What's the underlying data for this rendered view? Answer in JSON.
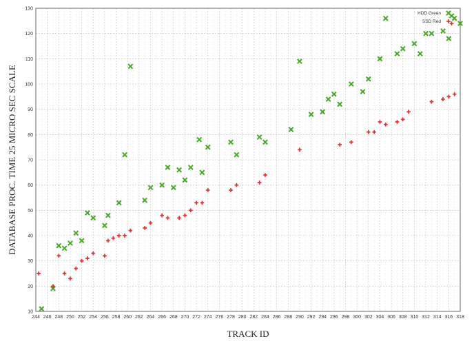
{
  "chart_data": {
    "type": "scatter",
    "title": "",
    "xlabel": "TRACK ID",
    "ylabel": "DATABASE PROC. TIME 25 MICRO SEC SCALE",
    "xlim": [
      244,
      318
    ],
    "ylim": [
      10,
      130
    ],
    "x_ticks": [
      244,
      246,
      248,
      250,
      252,
      254,
      256,
      258,
      260,
      262,
      264,
      266,
      268,
      270,
      272,
      274,
      276,
      278,
      280,
      282,
      284,
      286,
      288,
      290,
      292,
      294,
      296,
      298,
      300,
      302,
      304,
      306,
      308,
      310,
      312,
      314,
      316,
      318
    ],
    "y_ticks": [
      10,
      20,
      30,
      40,
      50,
      60,
      70,
      80,
      90,
      100,
      110,
      120,
      130
    ],
    "grid": true,
    "legend_position": "top-right",
    "series": [
      {
        "name": "HDD Green",
        "color": "#44aa22",
        "marker": "x",
        "points": [
          [
            245,
            11
          ],
          [
            247,
            19
          ],
          [
            248,
            36
          ],
          [
            249,
            35
          ],
          [
            250,
            37
          ],
          [
            251,
            41
          ],
          [
            252,
            38
          ],
          [
            253,
            49
          ],
          [
            254,
            47
          ],
          [
            256,
            44
          ],
          [
            256.6,
            48
          ],
          [
            258.5,
            53
          ],
          [
            259.5,
            72
          ],
          [
            260.5,
            107
          ],
          [
            263,
            54
          ],
          [
            264,
            59
          ],
          [
            266,
            60
          ],
          [
            267,
            67
          ],
          [
            268,
            59
          ],
          [
            269,
            66
          ],
          [
            270,
            62
          ],
          [
            271,
            67
          ],
          [
            272.5,
            78
          ],
          [
            273,
            65
          ],
          [
            274,
            75
          ],
          [
            278,
            77
          ],
          [
            279,
            72
          ],
          [
            283,
            79
          ],
          [
            284,
            77
          ],
          [
            288.5,
            82
          ],
          [
            290,
            109
          ],
          [
            292,
            88
          ],
          [
            294,
            89
          ],
          [
            295,
            94
          ],
          [
            296,
            96
          ],
          [
            297,
            92
          ],
          [
            299,
            100
          ],
          [
            301,
            97
          ],
          [
            302,
            102
          ],
          [
            304,
            110
          ],
          [
            305,
            126
          ],
          [
            307,
            112
          ],
          [
            308,
            114
          ],
          [
            310,
            116
          ],
          [
            311,
            112
          ],
          [
            312,
            120
          ],
          [
            313,
            120
          ],
          [
            315,
            121
          ],
          [
            316,
            118
          ],
          [
            316.5,
            127
          ],
          [
            317,
            126
          ],
          [
            318,
            124
          ]
        ]
      },
      {
        "name": "SSD Red",
        "color": "#e33333",
        "marker": "+",
        "points": [
          [
            244.5,
            25
          ],
          [
            247,
            20
          ],
          [
            248,
            32
          ],
          [
            249,
            25
          ],
          [
            250,
            23
          ],
          [
            251,
            27
          ],
          [
            252,
            30
          ],
          [
            253,
            31
          ],
          [
            254,
            33
          ],
          [
            256,
            32
          ],
          [
            256.6,
            38
          ],
          [
            257.5,
            39
          ],
          [
            258.5,
            40
          ],
          [
            259.5,
            40
          ],
          [
            260.5,
            42
          ],
          [
            263,
            43
          ],
          [
            264,
            45
          ],
          [
            266,
            48
          ],
          [
            267,
            47
          ],
          [
            269,
            47
          ],
          [
            270,
            48
          ],
          [
            271,
            50
          ],
          [
            272,
            53
          ],
          [
            273,
            53
          ],
          [
            274,
            58
          ],
          [
            278,
            58
          ],
          [
            279,
            60
          ],
          [
            283,
            61
          ],
          [
            284,
            64
          ],
          [
            290,
            74
          ],
          [
            297,
            76
          ],
          [
            299,
            77
          ],
          [
            302,
            81
          ],
          [
            303,
            81
          ],
          [
            304,
            85
          ],
          [
            305,
            84
          ],
          [
            307,
            85
          ],
          [
            308,
            86
          ],
          [
            309,
            89
          ],
          [
            313,
            93
          ],
          [
            315,
            94
          ],
          [
            316,
            95
          ],
          [
            317,
            96
          ],
          [
            316.5,
            124
          ]
        ]
      }
    ]
  }
}
